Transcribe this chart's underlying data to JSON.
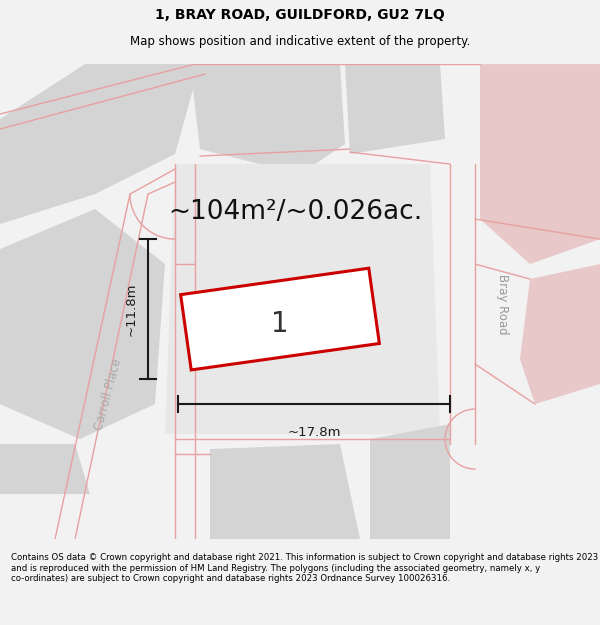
{
  "title": "1, BRAY ROAD, GUILDFORD, GU2 7LQ",
  "subtitle": "Map shows position and indicative extent of the property.",
  "footer": "Contains OS data © Crown copyright and database right 2021. This information is subject to Crown copyright and database rights 2023 and is reproduced with the permission of HM Land Registry. The polygons (including the associated geometry, namely x, y co-ordinates) are subject to Crown copyright and database rights 2023 Ordnance Survey 100026316.",
  "area_label": "~104m²/~0.026ac.",
  "width_label": "~17.8m",
  "height_label": "~11.8m",
  "plot_number": "1",
  "road_label_1": "Bray Road",
  "road_label_2": "Carroll Place",
  "bg_color": "#f2f2f2",
  "map_bg": "#ffffff",
  "block_color": "#d4d4d4",
  "pink_block_color": "#e8c8c8",
  "road_stroke": "#e8a0a0",
  "plot_stroke": "#cc0000",
  "plot_fill": "#ffffff",
  "dim_color": "#1a1a1a",
  "title_fontsize": 10,
  "subtitle_fontsize": 8.5,
  "footer_fontsize": 6.2,
  "area_fontsize": 19,
  "dim_fontsize": 9.5,
  "plot_number_fontsize": 20,
  "road_label_fontsize": 8.5
}
